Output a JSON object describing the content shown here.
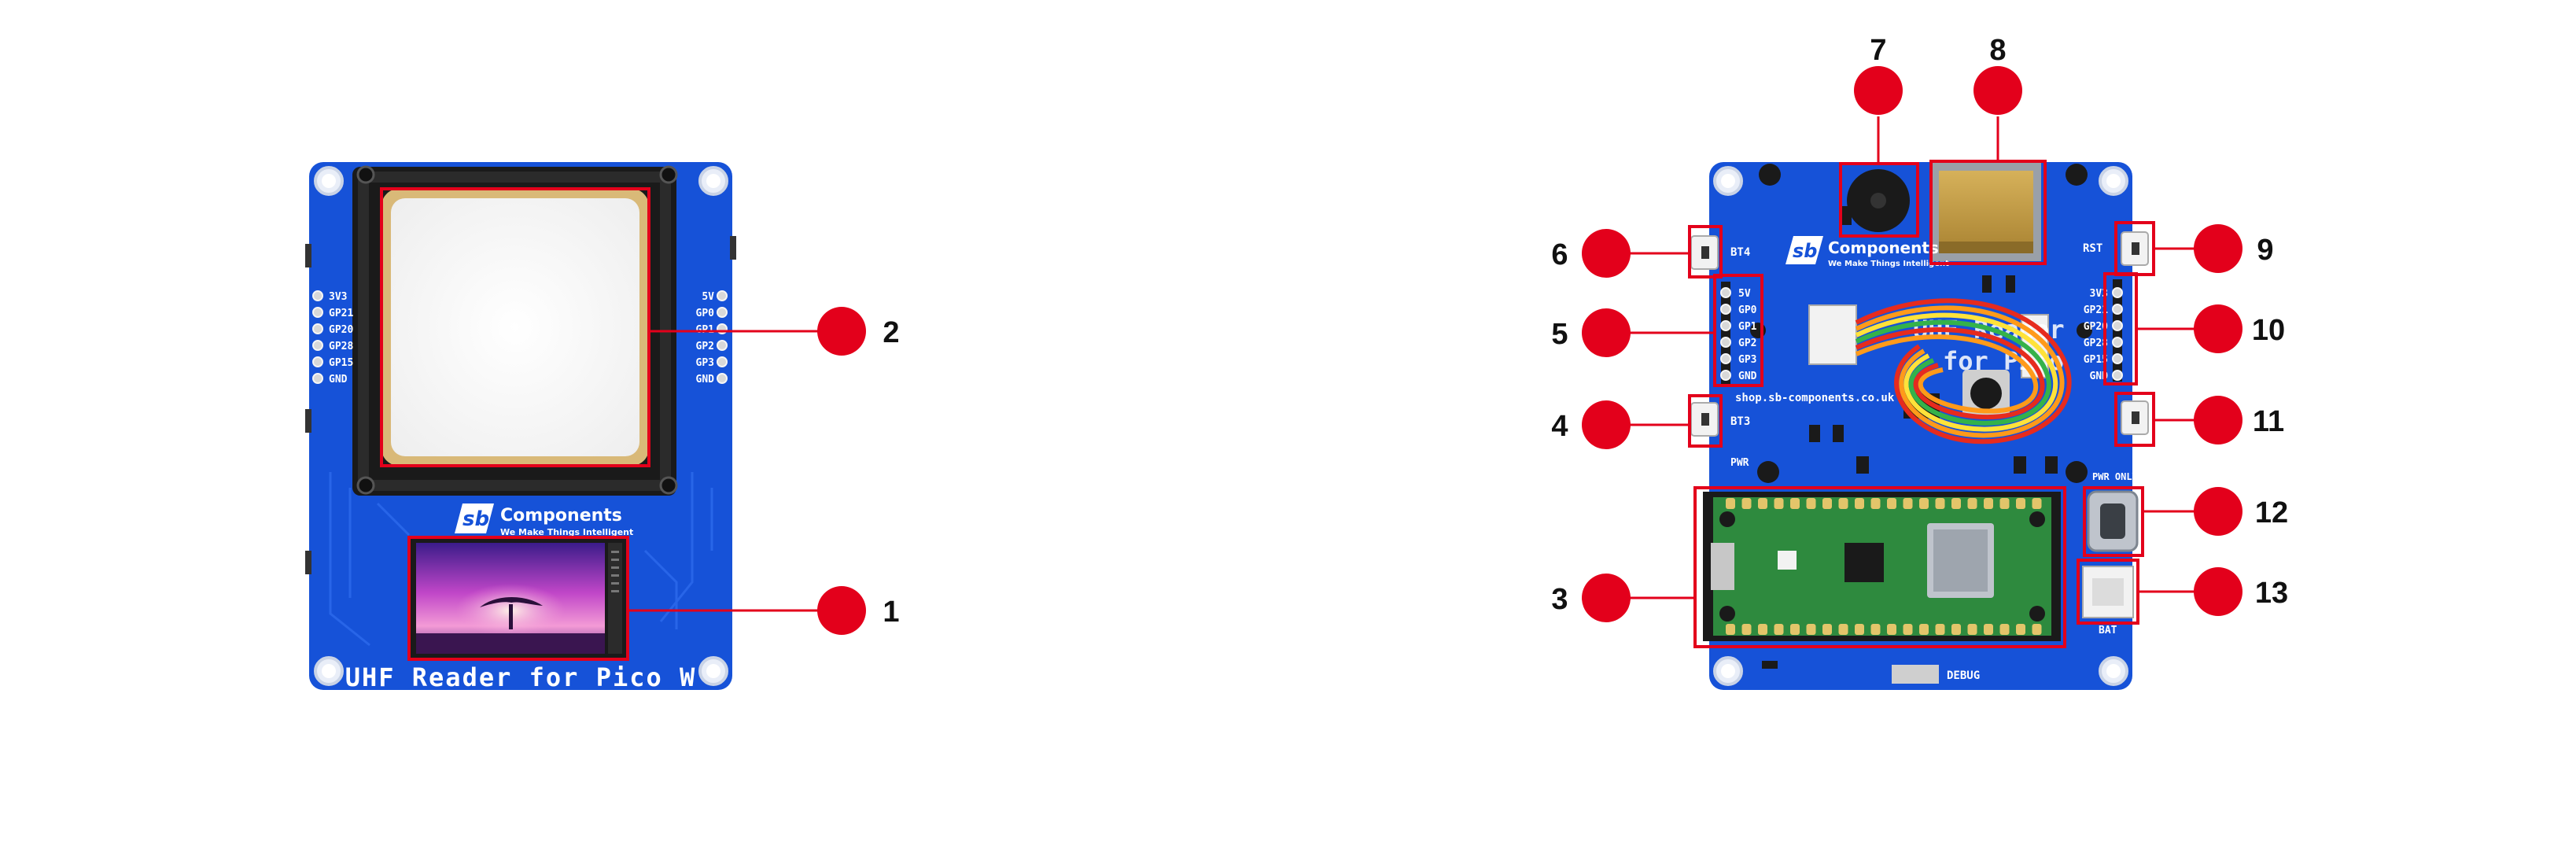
{
  "front_board": {
    "left_pins": [
      "3V3",
      "GP21",
      "GP20",
      "GP28",
      "GP15",
      "GND"
    ],
    "right_pins": [
      "5V",
      "GP0",
      "GP1",
      "GP2",
      "GP3",
      "GND"
    ],
    "brand_name": "Components",
    "brand_tagline": "We Make Things Intelligent",
    "brand_mark": "sb",
    "title": "UHF Reader for Pico W"
  },
  "back_board": {
    "left_pins": [
      "5V",
      "GP0",
      "GP1",
      "GP2",
      "GP3",
      "GND"
    ],
    "right_pins": [
      "3V3",
      "GP21",
      "GP20",
      "GP28",
      "GP15",
      "GND"
    ],
    "label_bt4": "BT4",
    "label_bt3": "BT3",
    "label_rst": "RST",
    "label_pwr": "PWR",
    "label_pwr_only": "PWR ONLY",
    "label_bat": "BAT",
    "label_debug": "DEBUG",
    "label_url": "shop.sb-components.co.uk",
    "brand_name": "Components",
    "brand_tagline": "We Make Things Intelligent",
    "brand_mark": "sb",
    "title_partial": "UHF Reader",
    "title_partial2": "for Pico"
  },
  "callouts": [
    "1",
    "2",
    "3",
    "4",
    "5",
    "6",
    "7",
    "8",
    "9",
    "10",
    "11",
    "12",
    "13"
  ],
  "colors": {
    "pcb_blue": "#1652d8",
    "pcb_dark": "#0f3fb0",
    "callout_red": "#e3001b",
    "antenna_black": "#1a1a1a",
    "antenna_gold": "#d9b978",
    "pico_green": "#2e8a3e"
  }
}
